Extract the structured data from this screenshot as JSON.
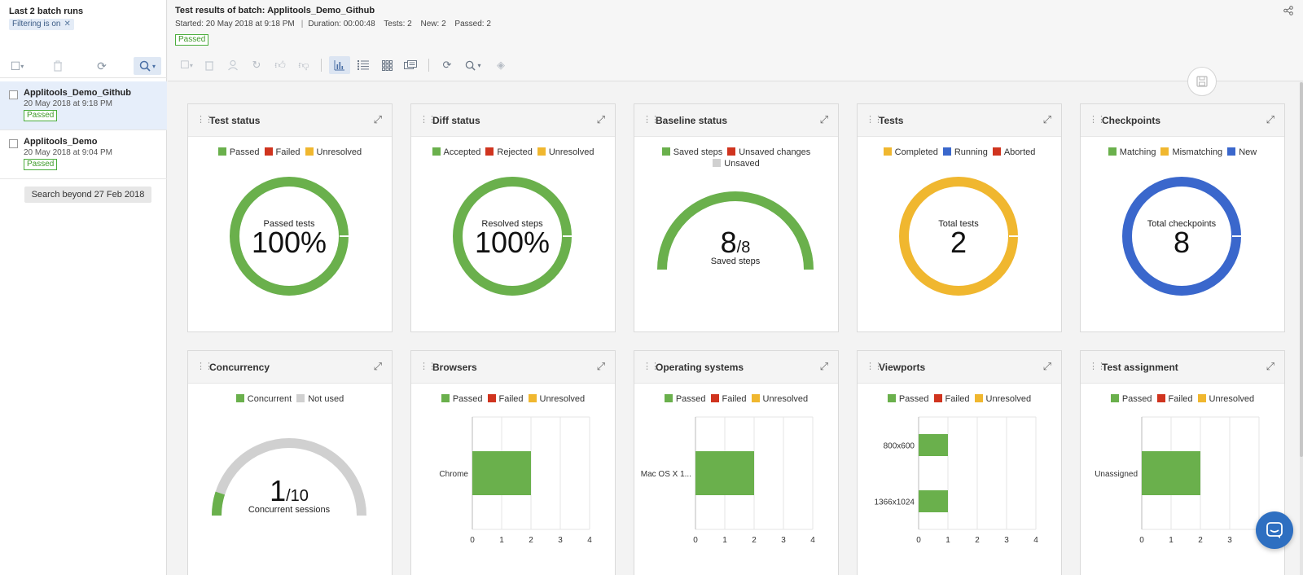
{
  "sidebar": {
    "title": "Last 2 batch runs",
    "filter_chip": "Filtering is on",
    "filter_close": "✕",
    "batches": [
      {
        "name": "Applitools_Demo_Github",
        "date": "20 May 2018 at 9:18 PM",
        "status": "Passed",
        "selected": true
      },
      {
        "name": "Applitools_Demo",
        "date": "20 May 2018 at 9:04 PM",
        "status": "Passed",
        "selected": false
      }
    ],
    "search_beyond": "Search beyond 27 Feb 2018",
    "toolbar_icons": [
      "checkbox-dropdown-icon",
      "trash-icon",
      "refresh-icon",
      "search-dropdown-icon"
    ]
  },
  "header": {
    "title": "Test results of batch: Applitools_Demo_Github",
    "started": "Started: 20 May 2018 at 9:18 PM",
    "separator": "|",
    "duration": "Duration: 00:00:48",
    "tests": "Tests: 2",
    "new": "New: 2",
    "passed": "Passed: 2",
    "status": "Passed"
  },
  "colors": {
    "green": "#6ab04c",
    "red": "#d0341f",
    "yellow": "#f0b72f",
    "blue": "#3a67cc",
    "gray": "#d0d0d0"
  },
  "cards": {
    "test_status": {
      "title": "Test status",
      "legend": [
        "Passed",
        "Failed",
        "Unresolved"
      ],
      "center_label": "Passed tests",
      "center_value": "100%"
    },
    "diff_status": {
      "title": "Diff status",
      "legend": [
        "Accepted",
        "Rejected",
        "Unresolved"
      ],
      "center_label": "Resolved steps",
      "center_value": "100%"
    },
    "baseline_status": {
      "title": "Baseline status",
      "legend": [
        "Saved steps",
        "Unsaved changes",
        "Unsaved"
      ],
      "value": "8",
      "total": "/8",
      "label": "Saved steps"
    },
    "tests": {
      "title": "Tests",
      "legend": [
        "Completed",
        "Running",
        "Aborted"
      ],
      "center_label": "Total tests",
      "center_value": "2"
    },
    "checkpoints": {
      "title": "Checkpoints",
      "legend": [
        "Matching",
        "Mismatching",
        "New"
      ],
      "center_label": "Total checkpoints",
      "center_value": "8"
    },
    "concurrency": {
      "title": "Concurrency",
      "legend": [
        "Concurrent",
        "Not used"
      ],
      "value": "1",
      "total": "/10",
      "label": "Concurrent sessions"
    },
    "browsers": {
      "title": "Browsers",
      "legend": [
        "Passed",
        "Failed",
        "Unresolved"
      ]
    },
    "operating_systems": {
      "title": "Operating systems",
      "legend": [
        "Passed",
        "Failed",
        "Unresolved"
      ]
    },
    "viewports": {
      "title": "Viewports",
      "legend": [
        "Passed",
        "Failed",
        "Unresolved"
      ]
    },
    "test_assignment": {
      "title": "Test assignment",
      "legend": [
        "Passed",
        "Failed",
        "Unresolved"
      ]
    }
  },
  "chart_data": [
    {
      "type": "pie",
      "title": "Test status",
      "categories": [
        "Passed",
        "Failed",
        "Unresolved"
      ],
      "values": [
        2,
        0,
        0
      ]
    },
    {
      "type": "pie",
      "title": "Diff status",
      "categories": [
        "Accepted",
        "Rejected",
        "Unresolved"
      ],
      "values": [
        8,
        0,
        0
      ]
    },
    {
      "type": "pie",
      "title": "Baseline status",
      "categories": [
        "Saved steps",
        "Unsaved changes",
        "Unsaved"
      ],
      "values": [
        8,
        0,
        0
      ]
    },
    {
      "type": "pie",
      "title": "Tests",
      "categories": [
        "Completed",
        "Running",
        "Aborted"
      ],
      "values": [
        2,
        0,
        0
      ]
    },
    {
      "type": "pie",
      "title": "Checkpoints",
      "categories": [
        "Matching",
        "Mismatching",
        "New"
      ],
      "values": [
        0,
        0,
        8
      ]
    },
    {
      "type": "pie",
      "title": "Concurrency",
      "categories": [
        "Concurrent",
        "Not used"
      ],
      "values": [
        1,
        9
      ]
    },
    {
      "type": "bar",
      "title": "Browsers",
      "categories": [
        "Chrome"
      ],
      "series": [
        {
          "name": "Passed",
          "values": [
            2
          ]
        },
        {
          "name": "Failed",
          "values": [
            0
          ]
        },
        {
          "name": "Unresolved",
          "values": [
            0
          ]
        }
      ],
      "xlim": [
        0,
        4
      ],
      "xticks": [
        "0",
        "1",
        "2",
        "3",
        "4"
      ]
    },
    {
      "type": "bar",
      "title": "Operating systems",
      "categories": [
        "Mac OS X 1..."
      ],
      "series": [
        {
          "name": "Passed",
          "values": [
            2
          ]
        },
        {
          "name": "Failed",
          "values": [
            0
          ]
        },
        {
          "name": "Unresolved",
          "values": [
            0
          ]
        }
      ],
      "xlim": [
        0,
        4
      ],
      "xticks": [
        "0",
        "1",
        "2",
        "3",
        "4"
      ]
    },
    {
      "type": "bar",
      "title": "Viewports",
      "categories": [
        "800x600",
        "1366x1024"
      ],
      "series": [
        {
          "name": "Passed",
          "values": [
            1,
            1
          ]
        },
        {
          "name": "Failed",
          "values": [
            0,
            0
          ]
        },
        {
          "name": "Unresolved",
          "values": [
            0,
            0
          ]
        }
      ],
      "xlim": [
        0,
        4
      ],
      "xticks": [
        "0",
        "1",
        "2",
        "3",
        "4"
      ]
    },
    {
      "type": "bar",
      "title": "Test assignment",
      "categories": [
        "Unassigned"
      ],
      "series": [
        {
          "name": "Passed",
          "values": [
            2
          ]
        },
        {
          "name": "Failed",
          "values": [
            0
          ]
        },
        {
          "name": "Unresolved",
          "values": [
            0
          ]
        }
      ],
      "xlim": [
        0,
        4
      ],
      "xticks": [
        "0",
        "1",
        "2",
        "3"
      ]
    }
  ]
}
